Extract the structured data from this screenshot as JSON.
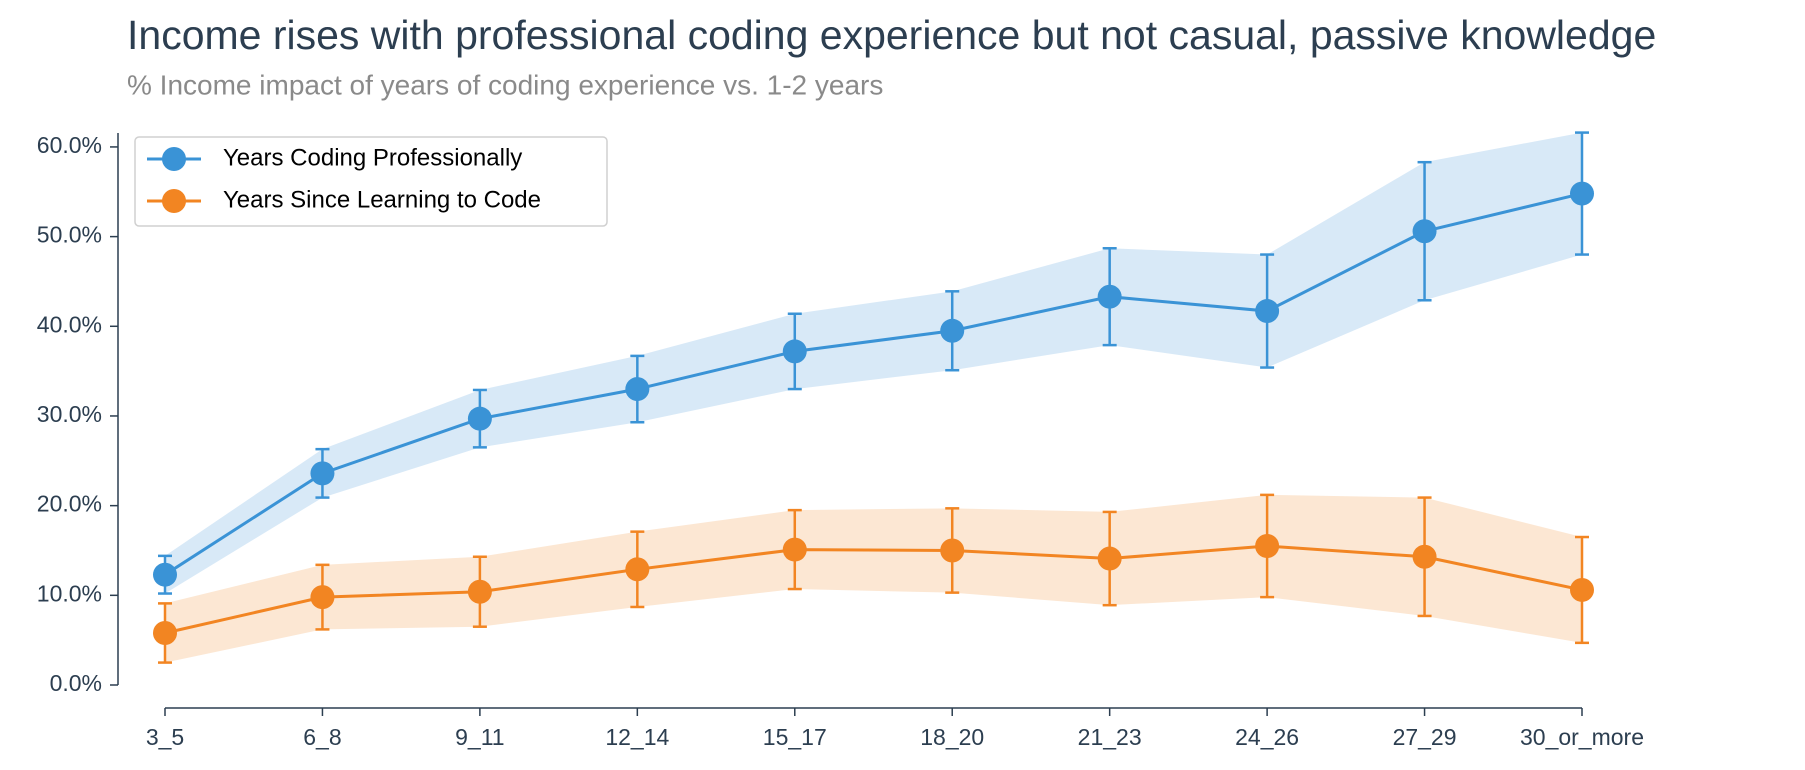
{
  "chart_data": {
    "type": "line",
    "title": "Income rises with professional coding experience but not casual, passive knowledge",
    "subtitle": "% Income impact of years of coding experience vs. 1-2 years",
    "categories": [
      "3_5",
      "6_8",
      "9_11",
      "12_14",
      "15_17",
      "18_20",
      "21_23",
      "24_26",
      "27_29",
      "30_or_more"
    ],
    "series": [
      {
        "name": "Years Coding Professionally",
        "color": "#3a93d6",
        "values": [
          12.3,
          23.6,
          29.7,
          33.0,
          37.2,
          39.5,
          43.3,
          41.7,
          50.6,
          54.8
        ],
        "errors": [
          2.1,
          2.7,
          3.2,
          3.7,
          4.2,
          4.4,
          5.4,
          6.3,
          7.7,
          6.8
        ]
      },
      {
        "name": "Years Since Learning to Code",
        "color": "#f28522",
        "values": [
          5.8,
          9.8,
          10.4,
          12.9,
          15.1,
          15.0,
          14.1,
          15.5,
          14.3,
          10.6
        ],
        "errors": [
          3.3,
          3.6,
          3.9,
          4.2,
          4.4,
          4.7,
          5.2,
          5.7,
          6.6,
          5.9
        ]
      }
    ],
    "ylim": [
      0,
      62
    ],
    "yticks": [
      {
        "value": 0,
        "label": "0.0%"
      },
      {
        "value": 10,
        "label": "10.0%"
      },
      {
        "value": 20,
        "label": "20.0%"
      },
      {
        "value": 30,
        "label": "30.0%"
      },
      {
        "value": 40,
        "label": "40.0%"
      },
      {
        "value": 50,
        "label": "50.0%"
      },
      {
        "value": 60,
        "label": "60.0%"
      }
    ],
    "legend": "upper-left"
  }
}
